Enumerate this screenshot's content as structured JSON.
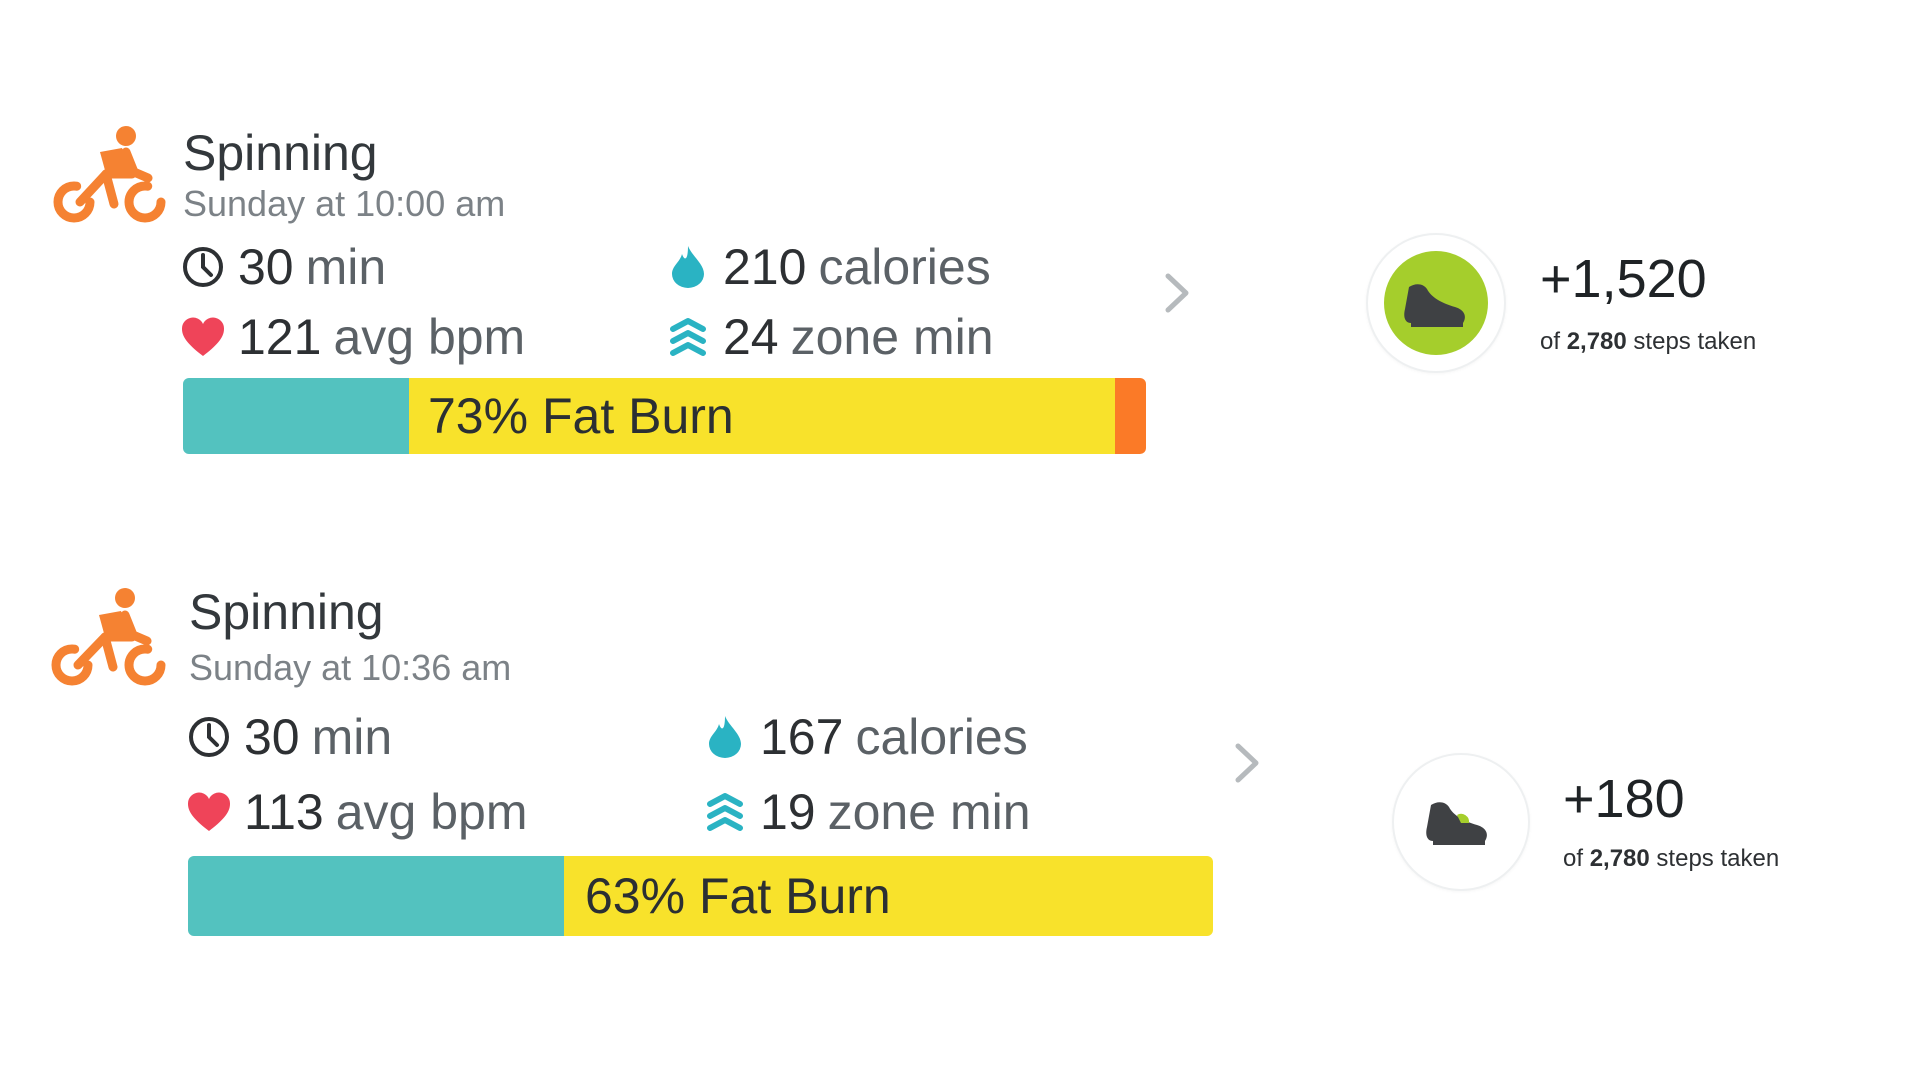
{
  "colors": {
    "accent_orange": "#f58232",
    "teal": "#53c2bf",
    "yellow": "#f8e22b",
    "peak_orange": "#fb7a27",
    "heart_red": "#ef4459",
    "steps_green": "#a5ce2c"
  },
  "activities": [
    {
      "icon": "bike-icon",
      "title": "Spinning",
      "subtitle": "Sunday at 10:00 am",
      "duration": {
        "icon": "clock-icon",
        "value": "30",
        "unit": "min"
      },
      "calories": {
        "icon": "flame-icon",
        "value": "210",
        "unit": "calories"
      },
      "heart_rate": {
        "icon": "heart-icon",
        "value": "121",
        "unit": "avg bpm"
      },
      "zone": {
        "icon": "zone-minutes-icon",
        "value": "24",
        "unit": "zone min"
      },
      "zones_bar": {
        "label": "73% Fat Burn",
        "segments": [
          {
            "zone": "below",
            "color": "#53c2bf",
            "fraction": 0.235
          },
          {
            "zone": "fat_burn",
            "color": "#f8e22b",
            "fraction": 0.733
          },
          {
            "zone": "cardio",
            "color": "#fb7a27",
            "fraction": 0.032
          }
        ]
      },
      "steps": {
        "icon": "shoe-icon",
        "value": "+1,520",
        "caption_prefix": "of",
        "total": "2,780",
        "caption_suffix": "steps taken",
        "fill_fraction": 0.547
      }
    },
    {
      "icon": "bike-icon",
      "title": "Spinning",
      "subtitle": "Sunday at 10:36 am",
      "duration": {
        "icon": "clock-icon",
        "value": "30",
        "unit": "min"
      },
      "calories": {
        "icon": "flame-icon",
        "value": "167",
        "unit": "calories"
      },
      "heart_rate": {
        "icon": "heart-icon",
        "value": "113",
        "unit": "avg bpm"
      },
      "zone": {
        "icon": "zone-minutes-icon",
        "value": "19",
        "unit": "zone min"
      },
      "zones_bar": {
        "label": "63% Fat Burn",
        "segments": [
          {
            "zone": "below",
            "color": "#53c2bf",
            "fraction": 0.367
          },
          {
            "zone": "fat_burn",
            "color": "#f8e22b",
            "fraction": 0.633
          }
        ]
      },
      "steps": {
        "icon": "shoe-icon",
        "value": "+180",
        "caption_prefix": "of",
        "total": "2,780",
        "caption_suffix": "steps taken",
        "fill_fraction": 0.065
      }
    }
  ]
}
